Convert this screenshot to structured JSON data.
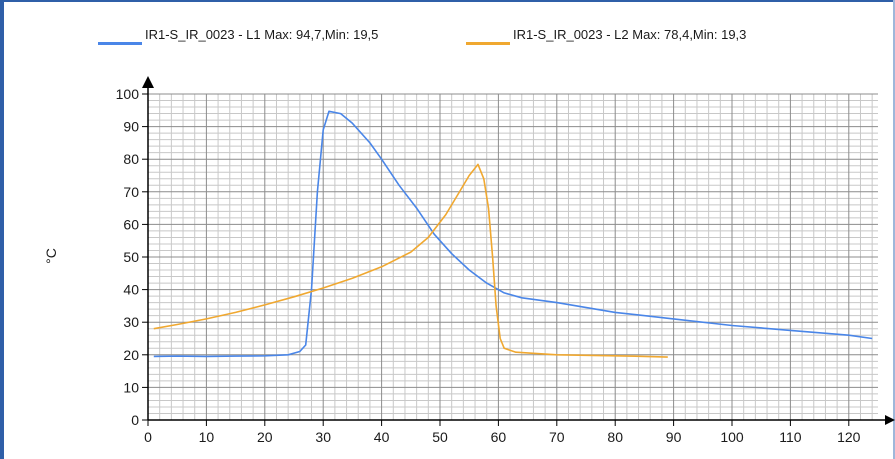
{
  "chart_data": {
    "type": "line",
    "title": "",
    "xlabel": "",
    "ylabel": "°C",
    "xlim": [
      0,
      125
    ],
    "ylim": [
      0,
      100
    ],
    "x_ticks": [
      0,
      10,
      20,
      30,
      40,
      50,
      60,
      70,
      80,
      90,
      100,
      110,
      120
    ],
    "y_ticks": [
      0,
      10,
      20,
      30,
      40,
      50,
      60,
      70,
      80,
      90,
      100
    ],
    "grid": true,
    "legend_position": "top",
    "series": [
      {
        "name": "IR1-S_IR_0023 - L1 Max: 94,7,Min: 19,5",
        "color": "#4a86e8",
        "points": [
          [
            1,
            19.5
          ],
          [
            5,
            19.6
          ],
          [
            10,
            19.5
          ],
          [
            15,
            19.6
          ],
          [
            20,
            19.7
          ],
          [
            24,
            20
          ],
          [
            26,
            21
          ],
          [
            27,
            23
          ],
          [
            28,
            40
          ],
          [
            29,
            70
          ],
          [
            30,
            89
          ],
          [
            31,
            94.7
          ],
          [
            33,
            94
          ],
          [
            35,
            91
          ],
          [
            38,
            85
          ],
          [
            40,
            80
          ],
          [
            43,
            72
          ],
          [
            46,
            65
          ],
          [
            49,
            57
          ],
          [
            52,
            51
          ],
          [
            55,
            46
          ],
          [
            58,
            42
          ],
          [
            61,
            39
          ],
          [
            64,
            37.5
          ],
          [
            70,
            36
          ],
          [
            80,
            33
          ],
          [
            90,
            31
          ],
          [
            100,
            29
          ],
          [
            110,
            27.5
          ],
          [
            120,
            26
          ],
          [
            124,
            25
          ]
        ]
      },
      {
        "name": "IR1-S_IR_0023 - L2 Max: 78,4,Min: 19,3",
        "color": "#f0a830",
        "points": [
          [
            1,
            28
          ],
          [
            5,
            29.3
          ],
          [
            10,
            31
          ],
          [
            15,
            33
          ],
          [
            20,
            35.3
          ],
          [
            25,
            37.8
          ],
          [
            30,
            40.5
          ],
          [
            35,
            43.5
          ],
          [
            40,
            47
          ],
          [
            45,
            51.5
          ],
          [
            48,
            56
          ],
          [
            51,
            63
          ],
          [
            53,
            69
          ],
          [
            55,
            75
          ],
          [
            56.5,
            78.4
          ],
          [
            57.5,
            74
          ],
          [
            58.3,
            65
          ],
          [
            59,
            50
          ],
          [
            59.6,
            35
          ],
          [
            60.3,
            25
          ],
          [
            61,
            22
          ],
          [
            63,
            20.8
          ],
          [
            70,
            20
          ],
          [
            80,
            19.7
          ],
          [
            85,
            19.5
          ],
          [
            89,
            19.3
          ]
        ]
      }
    ]
  }
}
